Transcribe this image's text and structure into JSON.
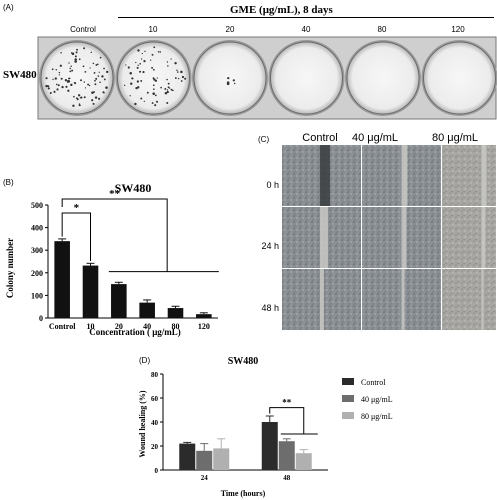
{
  "panel_a": {
    "tag": "(A)",
    "header": "GME (μg/mL), 8 days",
    "cell_line": "SW480",
    "wells": [
      "Control",
      "10",
      "20",
      "40",
      "80",
      "120"
    ]
  },
  "panel_c": {
    "tag": "(C)",
    "columns": [
      "Control",
      "40 μg/mL",
      "80 μg/mL"
    ],
    "rows": [
      "0 h",
      "24 h",
      "48 h"
    ]
  },
  "chart_data": [
    {
      "panel": "(B)",
      "type": "bar",
      "title": "SW480",
      "xlabel": "Concentration ( μg/mL)",
      "ylabel": "Colony number",
      "categories": [
        "Control",
        "10",
        "20",
        "40",
        "80",
        "120"
      ],
      "values": [
        340,
        232,
        150,
        68,
        44,
        17
      ],
      "errors": [
        10,
        10,
        8,
        12,
        8,
        6
      ],
      "ylim": [
        0,
        500
      ],
      "yticks": [
        0,
        100,
        200,
        300,
        400,
        500
      ],
      "annotations": [
        {
          "text": "*",
          "from": "Control",
          "to": "10"
        },
        {
          "text": "**",
          "from": "Control",
          "to": "120"
        }
      ]
    },
    {
      "panel": "(D)",
      "type": "bar",
      "title": "SW480",
      "xlabel": "Time (hours)",
      "ylabel": "Wound healing (%)",
      "categories": [
        "24",
        "48"
      ],
      "series": [
        {
          "name": "Control",
          "values": [
            22,
            40
          ],
          "errors": [
            1,
            5
          ],
          "color": "#2b2b2b"
        },
        {
          "name": "40 μg/mL",
          "values": [
            16,
            24
          ],
          "errors": [
            6,
            2
          ],
          "color": "#6d6d6d"
        },
        {
          "name": "80 μg/mL",
          "values": [
            18,
            14
          ],
          "errors": [
            8,
            3
          ],
          "color": "#b0b0b0"
        }
      ],
      "ylim": [
        0,
        80
      ],
      "yticks": [
        0,
        20,
        40,
        60,
        80
      ],
      "legend": "right",
      "annotations": [
        {
          "text": "**",
          "group": "48"
        }
      ]
    }
  ]
}
